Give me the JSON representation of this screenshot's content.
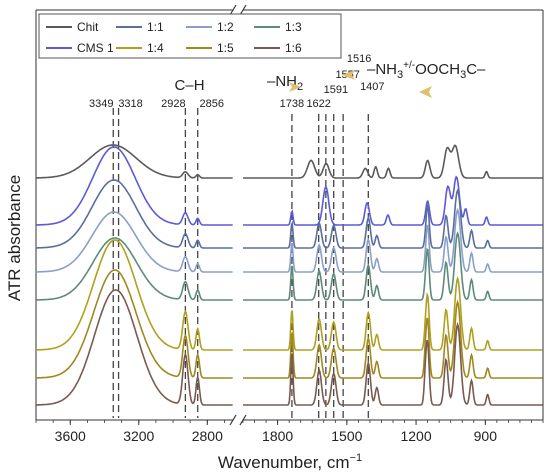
{
  "chart_data": {
    "type": "line",
    "title": "",
    "xlabel": "Wavenumber, cm",
    "xlabel_sup": "−1",
    "ylabel": "ATR absorbance",
    "x_axis_break_after": 2650,
    "x_axis_break_before": 1950,
    "x_segments": [
      {
        "xlim": [
          3800,
          2650
        ],
        "ticks": [
          3600,
          3200,
          2800
        ]
      },
      {
        "xlim": [
          1950,
          650
        ],
        "ticks": [
          1800,
          1500,
          1200,
          900
        ]
      }
    ],
    "legend": {
      "placement": "top-left",
      "rows": [
        [
          "Chit",
          "1:1",
          "1:2",
          "1:3"
        ],
        [
          "CMS 1",
          "1:4",
          "1:5",
          "1:6"
        ]
      ]
    },
    "series_order_top_to_bottom": [
      "Chit",
      "CMS 1",
      "1:1",
      "1:2",
      "1:3",
      "1:4",
      "1:5",
      "1:6"
    ],
    "series": [
      {
        "name": "Chit",
        "color": "#5a5a5a",
        "baseline": 178,
        "oh_amp": 33,
        "oh_center": 3350,
        "oh_width": 190,
        "ch_amp": 6,
        "profile": "chitosan"
      },
      {
        "name": "CMS 1",
        "color": "#5b5bd6",
        "baseline": 225,
        "oh_amp": 78,
        "oh_center": 3345,
        "oh_width": 175,
        "ch_amp": 12,
        "profile": "cms"
      },
      {
        "name": "1:1",
        "color": "#5a6e9e",
        "baseline": 248,
        "oh_amp": 68,
        "oh_center": 3345,
        "oh_width": 180,
        "ch_amp": 14,
        "profile": "mix1"
      },
      {
        "name": "1:2",
        "color": "#8aa0c8",
        "baseline": 272,
        "oh_amp": 60,
        "oh_center": 3345,
        "oh_width": 180,
        "ch_amp": 15,
        "profile": "mix2"
      },
      {
        "name": "1:3",
        "color": "#5e8a78",
        "baseline": 300,
        "oh_amp": 62,
        "oh_center": 3340,
        "oh_width": 180,
        "ch_amp": 18,
        "profile": "mix3"
      },
      {
        "name": "1:4",
        "color": "#b0a020",
        "baseline": 350,
        "oh_amp": 110,
        "oh_center": 3340,
        "oh_width": 175,
        "ch_amp": 38,
        "profile": "mix4"
      },
      {
        "name": "1:5",
        "color": "#a08820",
        "baseline": 378,
        "oh_amp": 108,
        "oh_center": 3340,
        "oh_width": 175,
        "ch_amp": 42,
        "profile": "mix5"
      },
      {
        "name": "1:6",
        "color": "#7a5a50",
        "baseline": 405,
        "oh_amp": 115,
        "oh_center": 3335,
        "oh_width": 175,
        "ch_amp": 50,
        "profile": "mix6"
      }
    ],
    "reference_lines_cm1": [
      3349,
      3318,
      2928,
      2856,
      1738,
      1622,
      1591,
      1557,
      1516,
      1407
    ],
    "peak_labels": [
      {
        "text": "3349",
        "x": 3349
      },
      {
        "text": "3318",
        "x": 3318
      },
      {
        "text": "2928",
        "x": 2928
      },
      {
        "text": "2856",
        "x": 2856
      },
      {
        "text": "1738",
        "x": 1738
      },
      {
        "text": "1622",
        "x": 1622
      },
      {
        "text": "1591",
        "x": 1591
      },
      {
        "text": "1557",
        "x": 1557
      },
      {
        "text": "1516",
        "x": 1516
      },
      {
        "text": "1407",
        "x": 1407
      }
    ],
    "group_labels": {
      "ch": "C–H",
      "nh2": "–NH",
      "nh2_sub": "2",
      "nh3_a": "–NH",
      "nh3_sub": "3",
      "nh3_sup": "+/-",
      "nh3_b": "OOCH",
      "nh3_sub2": "3",
      "nh3_c": "C–"
    }
  }
}
